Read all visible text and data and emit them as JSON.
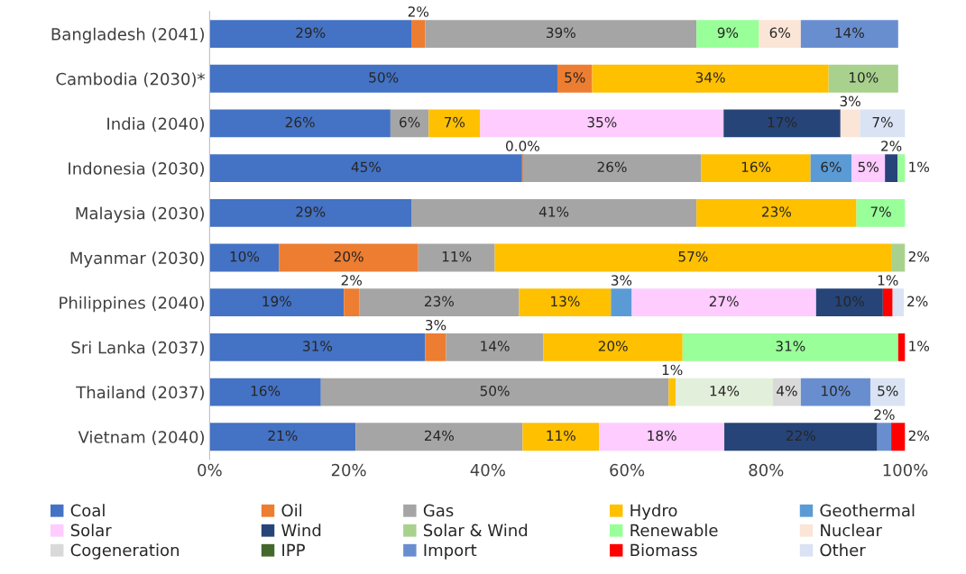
{
  "chart_data": {
    "type": "bar",
    "orientation": "horizontal",
    "stacked": true,
    "categories": [
      "Bangladesh (2041)",
      "Cambodia (2030)*",
      "India (2040)",
      "Indonesia (2030)",
      "Malaysia (2030)",
      "Myanmar (2030)",
      "Philippines (2040)",
      "Sri Lanka (2037)",
      "Thailand (2037)",
      "Vietnam (2040)"
    ],
    "xlim": [
      0,
      100
    ],
    "xticks": [
      {
        "value": 0,
        "label": "0%"
      },
      {
        "value": 20,
        "label": "20%"
      },
      {
        "value": 40,
        "label": "40%"
      },
      {
        "value": 60,
        "label": "60%"
      },
      {
        "value": 80,
        "label": "80%"
      },
      {
        "value": 100,
        "label": "100%"
      }
    ],
    "grid": false,
    "legend": "bottom",
    "series": [
      {
        "name": "Coal",
        "color": "#4472c4",
        "values": [
          29,
          50,
          26,
          45,
          29,
          10,
          19.3,
          31,
          16,
          21
        ],
        "value_labels": [
          "29%",
          "50%",
          "26%",
          "45%",
          "29%",
          "10%",
          "19%",
          "31%",
          "16%",
          "21%"
        ]
      },
      {
        "name": "Oil",
        "color": "#ed7d31",
        "values": [
          2,
          5,
          null,
          0,
          null,
          20,
          2.2,
          3,
          null,
          null
        ],
        "value_labels": [
          "2%",
          "5%",
          null,
          "0.0%",
          null,
          "20%",
          "2%",
          "3%",
          null,
          null
        ]
      },
      {
        "name": "Gas",
        "color": "#a5a5a5",
        "values": [
          39,
          null,
          5.5,
          25.7,
          41,
          11,
          23,
          14,
          50,
          24
        ],
        "value_labels": [
          "39%",
          null,
          "6%",
          "26%",
          "41%",
          "11%",
          "23%",
          "14%",
          "50%",
          "24%"
        ]
      },
      {
        "name": "Hydro",
        "color": "#ffc000",
        "values": [
          null,
          34,
          7.4,
          15.7,
          23,
          57,
          13.2,
          20,
          1,
          11
        ],
        "value_labels": [
          null,
          "34%",
          "7%",
          "16%",
          "23%",
          "57%",
          "13%",
          "20%",
          "1%",
          "11%"
        ]
      },
      {
        "name": "Geothermal",
        "color": "#5b9bd5",
        "values": [
          null,
          null,
          null,
          5.9,
          null,
          null,
          3,
          null,
          null,
          null
        ],
        "value_labels": [
          null,
          null,
          null,
          "6%",
          null,
          null,
          "3%",
          null,
          null,
          null
        ]
      },
      {
        "name": "Solar",
        "color": "#ffccff",
        "values": [
          null,
          null,
          35,
          4.8,
          null,
          null,
          26.5,
          null,
          null,
          18
        ],
        "value_labels": [
          null,
          null,
          "35%",
          "5%",
          null,
          null,
          "27%",
          null,
          null,
          "18%"
        ]
      },
      {
        "name": "Wind",
        "color": "#264478",
        "values": [
          null,
          null,
          16.8,
          1.8,
          null,
          null,
          9.6,
          null,
          null,
          22
        ],
        "value_labels": [
          null,
          null,
          "17%",
          "2%",
          null,
          null,
          "10%",
          null,
          null,
          "22%"
        ]
      },
      {
        "name": "Solar & Wind",
        "color": "#a9d18e",
        "values": [
          null,
          10,
          null,
          null,
          null,
          2,
          null,
          null,
          null,
          null
        ],
        "value_labels": [
          null,
          "10%",
          null,
          null,
          null,
          "2%",
          null,
          null,
          null,
          null
        ]
      },
      {
        "name": "Renewable",
        "color": "#99ff99",
        "colors": [
          "#99ff99",
          "#99ff99",
          "#99ff99",
          "#99ff99",
          "#99ff99",
          "#99ff99",
          "#99ff99",
          "#99ff99",
          "#e2efda",
          "#99ff99"
        ],
        "values": [
          9,
          null,
          null,
          1.1,
          7,
          null,
          null,
          31,
          14,
          null
        ],
        "value_labels": [
          "9%",
          null,
          null,
          "1%",
          "7%",
          null,
          null,
          "31%",
          "14%",
          null
        ]
      },
      {
        "name": "Nuclear",
        "color": "#fbe5d6",
        "values": [
          6,
          null,
          2.8,
          null,
          null,
          null,
          null,
          null,
          null,
          null
        ],
        "value_labels": [
          "6%",
          null,
          "3%",
          null,
          null,
          null,
          null,
          null,
          null,
          null
        ]
      },
      {
        "name": "Cogeneration",
        "color": "#d9d9d9",
        "values": [
          null,
          null,
          null,
          null,
          null,
          null,
          null,
          null,
          4,
          null
        ],
        "value_labels": [
          null,
          null,
          null,
          null,
          null,
          null,
          null,
          null,
          "4%",
          null
        ]
      },
      {
        "name": "IPP",
        "color": "#43682b",
        "values": [
          null,
          null,
          null,
          null,
          null,
          null,
          null,
          null,
          null,
          null
        ]
      },
      {
        "name": "Import",
        "color": "#698ed0",
        "values": [
          14,
          null,
          null,
          null,
          null,
          null,
          null,
          null,
          10,
          2
        ],
        "value_labels": [
          "14%",
          null,
          null,
          null,
          null,
          null,
          null,
          null,
          "10%",
          "2%"
        ]
      },
      {
        "name": "Biomass",
        "color": "#ff0000",
        "values": [
          null,
          null,
          null,
          null,
          null,
          null,
          1.4,
          1,
          null,
          2
        ],
        "value_labels": [
          null,
          null,
          null,
          null,
          null,
          null,
          "1%",
          "1%",
          null,
          "2%"
        ]
      },
      {
        "name": "Other",
        "color": "#dae3f3",
        "values": [
          null,
          null,
          6.5,
          null,
          null,
          null,
          1.6,
          null,
          5,
          null
        ],
        "value_labels": [
          null,
          null,
          "7%",
          null,
          null,
          null,
          "2%",
          null,
          "5%",
          null
        ]
      }
    ]
  }
}
